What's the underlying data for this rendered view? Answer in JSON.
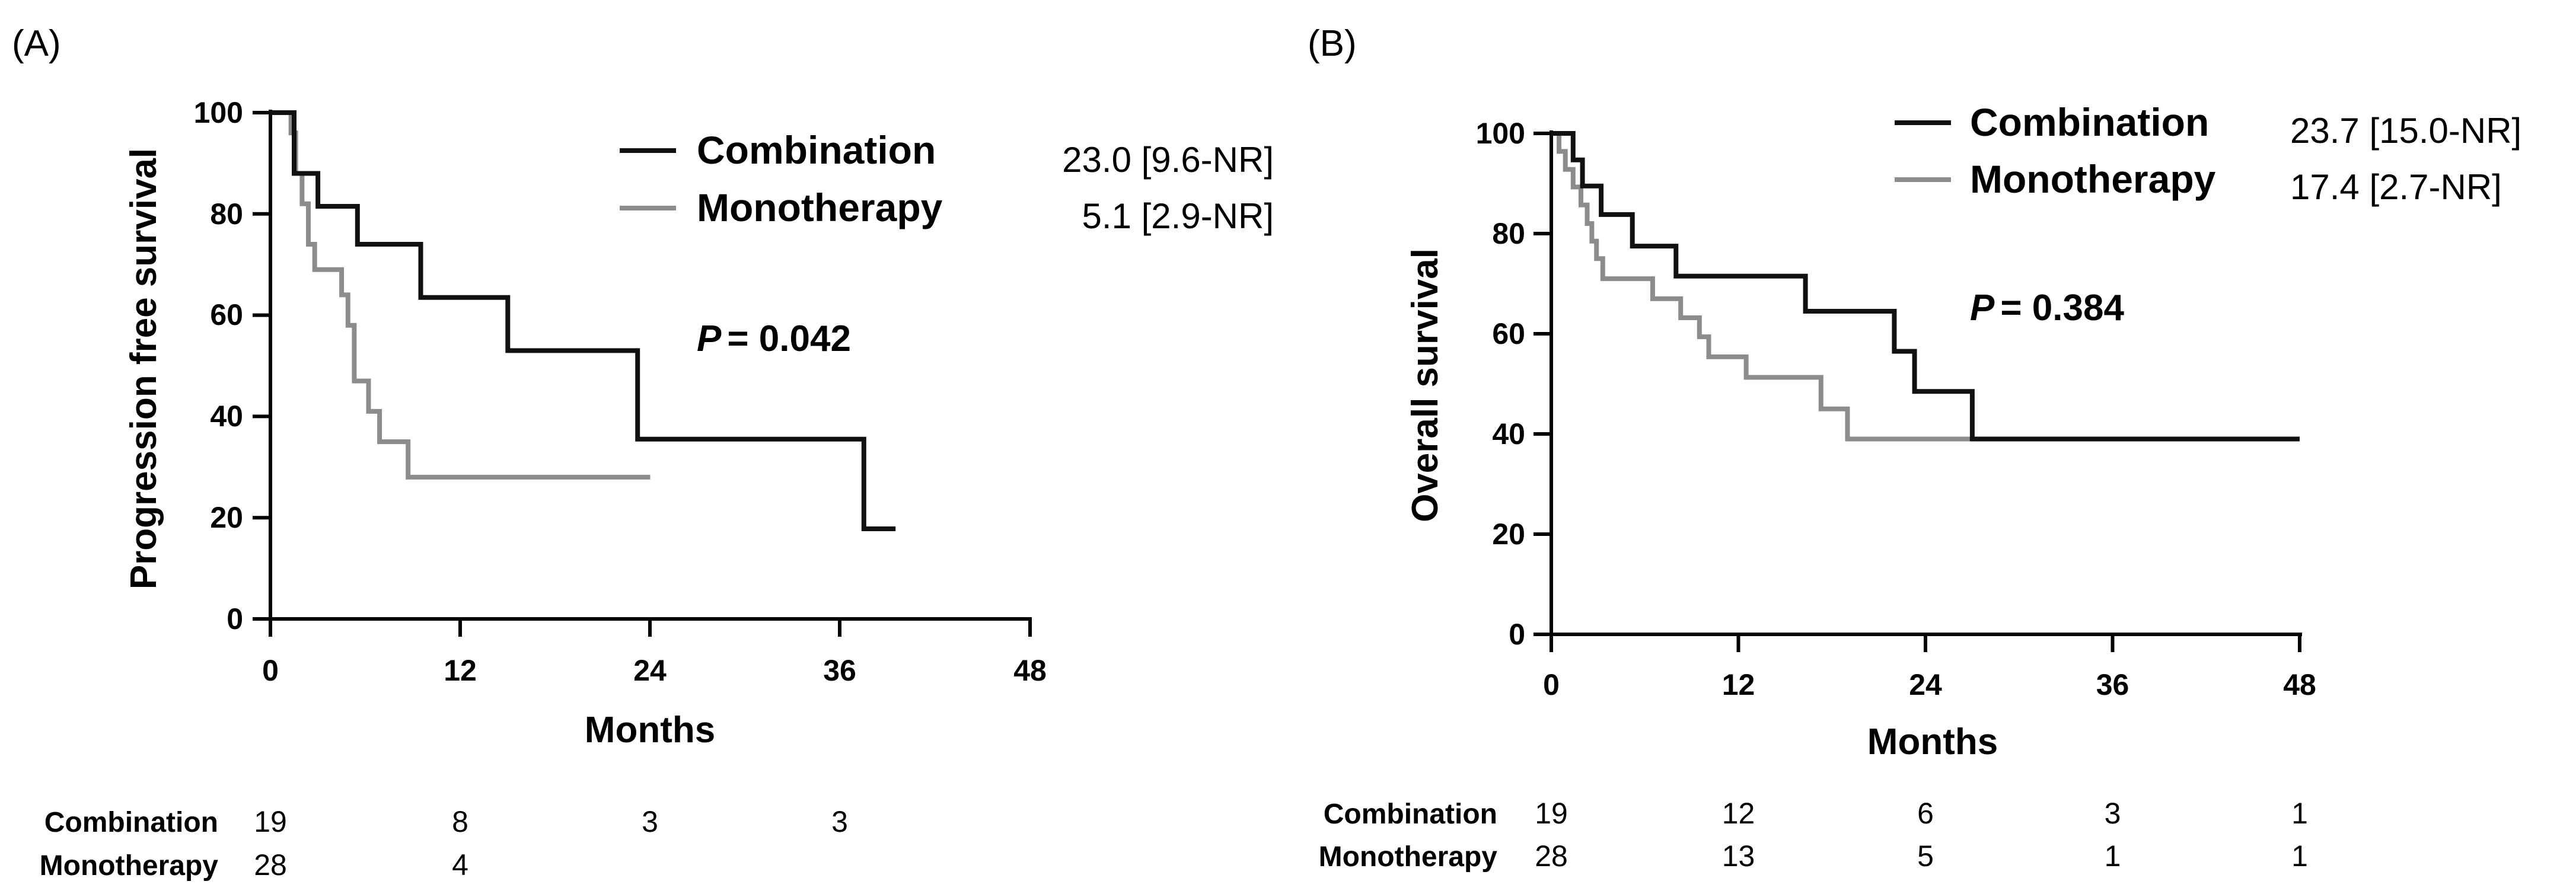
{
  "colors": {
    "combination": "#111111",
    "monotherapy": "#8c8c8c",
    "axis": "#000000"
  },
  "chart_data": [
    {
      "type": "line",
      "subtype": "kaplan-meier",
      "panel_label": "(A)",
      "title": "",
      "xlabel": "Months",
      "ylabel": "Progression free survival",
      "xlim": [
        0,
        48
      ],
      "ylim": [
        0,
        100
      ],
      "xticks": [
        0,
        12,
        24,
        36,
        48
      ],
      "yticks": [
        0,
        20,
        40,
        60,
        80,
        100
      ],
      "series": [
        {
          "name": "Combination",
          "median_label": "23.0 [9.6-NR]",
          "points": [
            [
              0,
              100
            ],
            [
              1.5,
              100
            ],
            [
              1.5,
              88
            ],
            [
              3,
              88
            ],
            [
              3,
              81.5
            ],
            [
              5.5,
              81.5
            ],
            [
              5.5,
              74
            ],
            [
              9.5,
              74
            ],
            [
              9.5,
              63.5
            ],
            [
              15,
              63.5
            ],
            [
              15,
              53
            ],
            [
              23.2,
              53
            ],
            [
              23.2,
              35.5
            ],
            [
              37.5,
              35.5
            ],
            [
              37.5,
              17.8
            ],
            [
              39.5,
              17.8
            ]
          ]
        },
        {
          "name": "Monotherapy",
          "median_label": "5.1 [2.9-NR]",
          "points": [
            [
              0,
              100
            ],
            [
              1.3,
              100
            ],
            [
              1.3,
              96
            ],
            [
              1.6,
              96
            ],
            [
              1.6,
              88
            ],
            [
              2,
              88
            ],
            [
              2,
              82
            ],
            [
              2.4,
              82
            ],
            [
              2.4,
              74
            ],
            [
              2.8,
              74
            ],
            [
              2.8,
              69
            ],
            [
              4.5,
              69
            ],
            [
              4.5,
              64
            ],
            [
              4.9,
              64
            ],
            [
              4.9,
              58
            ],
            [
              5.3,
              58
            ],
            [
              5.3,
              47
            ],
            [
              6.2,
              47
            ],
            [
              6.2,
              41
            ],
            [
              6.9,
              41
            ],
            [
              6.9,
              35
            ],
            [
              8.7,
              35
            ],
            [
              8.7,
              28
            ],
            [
              24,
              28
            ]
          ]
        }
      ],
      "annotation": {
        "p_label": "P",
        "p_value": "= 0.042"
      },
      "risk_table": {
        "times": [
          0,
          12,
          24,
          36
        ],
        "rows": [
          {
            "label": "Combination",
            "counts": [
              "19",
              "8",
              "3",
              "3"
            ]
          },
          {
            "label": "Monotherapy",
            "counts": [
              "28",
              "4"
            ]
          }
        ]
      }
    },
    {
      "type": "line",
      "subtype": "kaplan-meier",
      "panel_label": "(B)",
      "title": "",
      "xlabel": "Months",
      "ylabel": "Overall survival",
      "xlim": [
        0,
        48
      ],
      "ylim": [
        0,
        100
      ],
      "xticks": [
        0,
        12,
        24,
        36,
        48
      ],
      "yticks": [
        0,
        20,
        40,
        60,
        80,
        100
      ],
      "series": [
        {
          "name": "Combination",
          "median_label": "23.7 [15.0-NR]",
          "points": [
            [
              0,
              100
            ],
            [
              1.4,
              100
            ],
            [
              1.4,
              94.7
            ],
            [
              2,
              94.7
            ],
            [
              2,
              89.5
            ],
            [
              3.2,
              89.5
            ],
            [
              3.2,
              83.8
            ],
            [
              5.2,
              83.8
            ],
            [
              5.2,
              77.5
            ],
            [
              8,
              77.5
            ],
            [
              8,
              71.5
            ],
            [
              16.3,
              71.5
            ],
            [
              16.3,
              64.5
            ],
            [
              22,
              64.5
            ],
            [
              22,
              56.5
            ],
            [
              23.3,
              56.5
            ],
            [
              23.3,
              48.5
            ],
            [
              27,
              48.5
            ],
            [
              27,
              39
            ],
            [
              48,
              39
            ]
          ]
        },
        {
          "name": "Monotherapy",
          "median_label": "17.4 [2.7-NR]",
          "points": [
            [
              0,
              100
            ],
            [
              0.5,
              100
            ],
            [
              0.5,
              96.4
            ],
            [
              0.9,
              96.4
            ],
            [
              0.9,
              92.8
            ],
            [
              1.4,
              92.8
            ],
            [
              1.4,
              89.3
            ],
            [
              1.9,
              89.3
            ],
            [
              1.9,
              85.7
            ],
            [
              2.3,
              85.7
            ],
            [
              2.3,
              82
            ],
            [
              2.6,
              82
            ],
            [
              2.6,
              78.5
            ],
            [
              2.9,
              78.5
            ],
            [
              2.9,
              75
            ],
            [
              3.3,
              75
            ],
            [
              3.3,
              71
            ],
            [
              6.5,
              71
            ],
            [
              6.5,
              67
            ],
            [
              8.3,
              67
            ],
            [
              8.3,
              63.2
            ],
            [
              9.5,
              63.2
            ],
            [
              9.5,
              59.4
            ],
            [
              10.1,
              59.4
            ],
            [
              10.1,
              55.4
            ],
            [
              12.5,
              55.4
            ],
            [
              12.5,
              51.3
            ],
            [
              17.3,
              51.3
            ],
            [
              17.3,
              45
            ],
            [
              19,
              45
            ],
            [
              19,
              39
            ],
            [
              27,
              39
            ]
          ]
        }
      ],
      "annotation": {
        "p_label": "P",
        "p_value": "= 0.384"
      },
      "risk_table": {
        "times": [
          0,
          12,
          24,
          36,
          48
        ],
        "rows": [
          {
            "label": "Combination",
            "counts": [
              "19",
              "12",
              "6",
              "3",
              "1"
            ]
          },
          {
            "label": "Monotherapy",
            "counts": [
              "28",
              "13",
              "5",
              "1",
              "1"
            ]
          }
        ]
      }
    }
  ]
}
